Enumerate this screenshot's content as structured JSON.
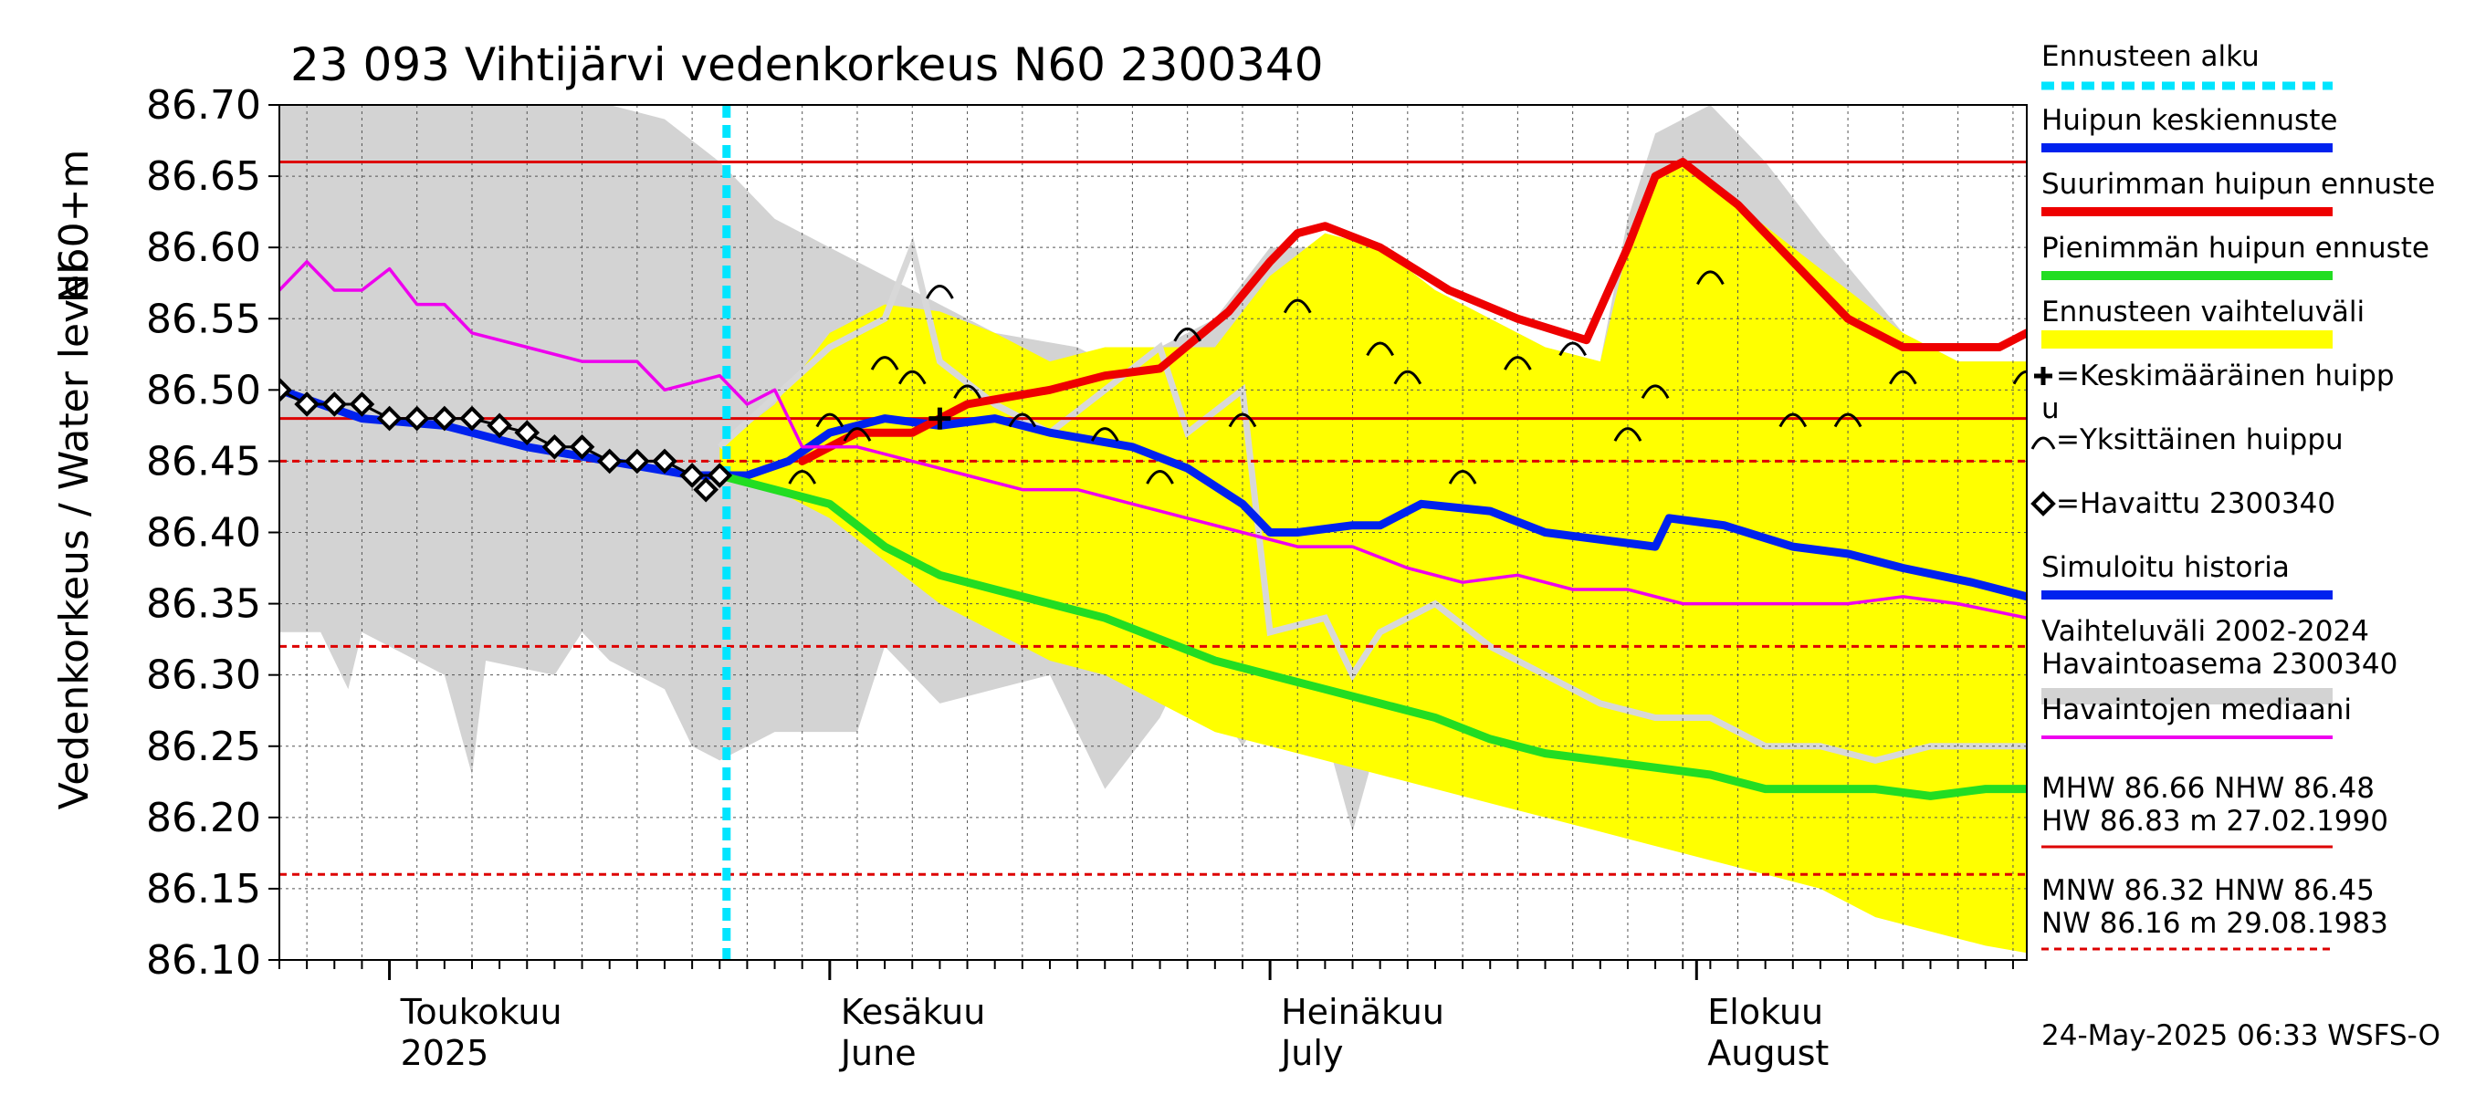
{
  "chart_data": {
    "type": "line",
    "title": "23 093 Vihtijärvi vedenkorkeus N60 2300340",
    "ylabel_1": "Vedenkorkeus / Water level",
    "ylabel_2": "N60+m",
    "ylim": [
      86.1,
      86.7
    ],
    "y_ticks": [
      "86.70",
      "86.65",
      "86.60",
      "86.55",
      "86.50",
      "86.45",
      "86.40",
      "86.35",
      "86.30",
      "86.25",
      "86.20",
      "86.15",
      "86.10"
    ],
    "x_range_days": [
      0,
      127
    ],
    "month_labels": [
      {
        "name": "Toukokuu",
        "sub": "2025",
        "day": 8
      },
      {
        "name": "Kesäkuu",
        "sub": "June",
        "day": 40
      },
      {
        "name": "Heinäkuu",
        "sub": "July",
        "day": 72
      },
      {
        "name": "Elokuu",
        "sub": "August",
        "day": 103
      }
    ],
    "forecast_start_day": 32.5,
    "ref_lines": [
      {
        "value": 86.66,
        "style": "solid"
      },
      {
        "value": 86.48,
        "style": "solid"
      },
      {
        "value": 86.45,
        "style": "dashed"
      },
      {
        "value": 86.32,
        "style": "dashed"
      },
      {
        "value": 86.16,
        "style": "dashed"
      }
    ],
    "series": [
      {
        "name": "Huipun keskiennuste",
        "color": "#0022ee",
        "points": [
          [
            0,
            86.5
          ],
          [
            6,
            86.48
          ],
          [
            12,
            86.475
          ],
          [
            18,
            86.46
          ],
          [
            24,
            86.45
          ],
          [
            30,
            86.44
          ],
          [
            34,
            86.44
          ],
          [
            37,
            86.45
          ],
          [
            40,
            86.47
          ],
          [
            44,
            86.48
          ],
          [
            48,
            86.475
          ],
          [
            52,
            86.48
          ],
          [
            56,
            86.47
          ],
          [
            62,
            86.46
          ],
          [
            66,
            86.445
          ],
          [
            70,
            86.42
          ],
          [
            72,
            86.4
          ],
          [
            74,
            86.4
          ],
          [
            78,
            86.405
          ],
          [
            80,
            86.405
          ],
          [
            83,
            86.42
          ],
          [
            88,
            86.415
          ],
          [
            92,
            86.4
          ],
          [
            96,
            86.395
          ],
          [
            100,
            86.39
          ],
          [
            101,
            86.41
          ],
          [
            105,
            86.405
          ],
          [
            110,
            86.39
          ],
          [
            114,
            86.385
          ],
          [
            118,
            86.375
          ],
          [
            123,
            86.365
          ],
          [
            127,
            86.355
          ]
        ]
      },
      {
        "name": "Suurimman huipun ennuste",
        "color": "#ee0000",
        "points": [
          [
            38,
            86.45
          ],
          [
            42,
            86.47
          ],
          [
            46,
            86.47
          ],
          [
            50,
            86.49
          ],
          [
            56,
            86.5
          ],
          [
            60,
            86.51
          ],
          [
            64,
            86.515
          ],
          [
            69,
            86.555
          ],
          [
            72,
            86.59
          ],
          [
            74,
            86.61
          ],
          [
            76,
            86.615
          ],
          [
            80,
            86.6
          ],
          [
            85,
            86.57
          ],
          [
            90,
            86.55
          ],
          [
            95,
            86.535
          ],
          [
            98,
            86.6
          ],
          [
            100,
            86.65
          ],
          [
            102,
            86.66
          ],
          [
            106,
            86.63
          ],
          [
            110,
            86.59
          ],
          [
            114,
            86.55
          ],
          [
            118,
            86.53
          ],
          [
            122,
            86.53
          ],
          [
            125,
            86.53
          ],
          [
            127,
            86.54
          ]
        ]
      },
      {
        "name": "Pienimmän huipun ennuste",
        "color": "#22dd22",
        "points": [
          [
            32,
            86.44
          ],
          [
            36,
            86.43
          ],
          [
            40,
            86.42
          ],
          [
            44,
            86.39
          ],
          [
            48,
            86.37
          ],
          [
            52,
            86.36
          ],
          [
            56,
            86.35
          ],
          [
            60,
            86.34
          ],
          [
            64,
            86.325
          ],
          [
            68,
            86.31
          ],
          [
            72,
            86.3
          ],
          [
            76,
            86.29
          ],
          [
            80,
            86.28
          ],
          [
            84,
            86.27
          ],
          [
            88,
            86.255
          ],
          [
            92,
            86.245
          ],
          [
            96,
            86.24
          ],
          [
            100,
            86.235
          ],
          [
            104,
            86.23
          ],
          [
            108,
            86.22
          ],
          [
            112,
            86.22
          ],
          [
            116,
            86.22
          ],
          [
            120,
            86.215
          ],
          [
            124,
            86.22
          ],
          [
            127,
            86.22
          ]
        ]
      },
      {
        "name": "Havaintojen mediaani",
        "color": "#ee00ee",
        "points": [
          [
            0,
            86.57
          ],
          [
            2,
            86.59
          ],
          [
            4,
            86.57
          ],
          [
            6,
            86.57
          ],
          [
            8,
            86.585
          ],
          [
            10,
            86.56
          ],
          [
            12,
            86.56
          ],
          [
            14,
            86.54
          ],
          [
            18,
            86.53
          ],
          [
            22,
            86.52
          ],
          [
            26,
            86.52
          ],
          [
            28,
            86.5
          ],
          [
            32,
            86.51
          ],
          [
            34,
            86.49
          ],
          [
            36,
            86.5
          ],
          [
            38,
            86.46
          ],
          [
            42,
            86.46
          ],
          [
            46,
            86.45
          ],
          [
            50,
            86.44
          ],
          [
            54,
            86.43
          ],
          [
            58,
            86.43
          ],
          [
            62,
            86.42
          ],
          [
            66,
            86.41
          ],
          [
            70,
            86.4
          ],
          [
            74,
            86.39
          ],
          [
            78,
            86.39
          ],
          [
            82,
            86.375
          ],
          [
            86,
            86.365
          ],
          [
            90,
            86.37
          ],
          [
            94,
            86.36
          ],
          [
            98,
            86.36
          ],
          [
            102,
            86.35
          ],
          [
            106,
            86.35
          ],
          [
            110,
            86.35
          ],
          [
            114,
            86.35
          ],
          [
            118,
            86.355
          ],
          [
            122,
            86.35
          ],
          [
            127,
            86.34
          ]
        ]
      }
    ],
    "observed": {
      "name": "Havaittu 2300340",
      "points": [
        [
          0,
          86.5
        ],
        [
          2,
          86.49
        ],
        [
          4,
          86.49
        ],
        [
          6,
          86.49
        ],
        [
          8,
          86.48
        ],
        [
          10,
          86.48
        ],
        [
          12,
          86.48
        ],
        [
          14,
          86.48
        ],
        [
          16,
          86.475
        ],
        [
          18,
          86.47
        ],
        [
          20,
          86.46
        ],
        [
          22,
          86.46
        ],
        [
          24,
          86.45
        ],
        [
          26,
          86.45
        ],
        [
          28,
          86.45
        ],
        [
          30,
          86.44
        ],
        [
          32,
          86.44
        ],
        [
          31,
          86.43
        ]
      ]
    },
    "peaks": [
      [
        38,
        86.44
      ],
      [
        40,
        86.48
      ],
      [
        42,
        86.47
      ],
      [
        44,
        86.52
      ],
      [
        46,
        86.51
      ],
      [
        48,
        86.57
      ],
      [
        50,
        86.5
      ],
      [
        54,
        86.48
      ],
      [
        60,
        86.47
      ],
      [
        64,
        86.44
      ],
      [
        66,
        86.54
      ],
      [
        70,
        86.48
      ],
      [
        74,
        86.56
      ],
      [
        80,
        86.53
      ],
      [
        82,
        86.51
      ],
      [
        86,
        86.44
      ],
      [
        90,
        86.52
      ],
      [
        94,
        86.53
      ],
      [
        98,
        86.47
      ],
      [
        100,
        86.5
      ],
      [
        104,
        86.58
      ],
      [
        110,
        86.48
      ],
      [
        114,
        86.48
      ],
      [
        118,
        86.51
      ],
      [
        127,
        86.51
      ]
    ],
    "mean_peak": [
      48,
      86.48
    ],
    "forecast_band": {
      "name": "Ennusteen vaihteluväli",
      "upper": [
        [
          32,
          86.46
        ],
        [
          36,
          86.49
        ],
        [
          40,
          86.54
        ],
        [
          44,
          86.56
        ],
        [
          48,
          86.555
        ],
        [
          52,
          86.54
        ],
        [
          56,
          86.52
        ],
        [
          60,
          86.53
        ],
        [
          64,
          86.53
        ],
        [
          68,
          86.53
        ],
        [
          72,
          86.58
        ],
        [
          76,
          86.61
        ],
        [
          80,
          86.6
        ],
        [
          84,
          86.57
        ],
        [
          88,
          86.55
        ],
        [
          92,
          86.53
        ],
        [
          96,
          86.52
        ],
        [
          98,
          86.6
        ],
        [
          100,
          86.65
        ],
        [
          102,
          86.66
        ],
        [
          106,
          86.63
        ],
        [
          110,
          86.6
        ],
        [
          114,
          86.57
        ],
        [
          118,
          86.54
        ],
        [
          122,
          86.52
        ],
        [
          127,
          86.52
        ]
      ],
      "lower": [
        [
          32,
          86.44
        ],
        [
          36,
          86.43
        ],
        [
          40,
          86.41
        ],
        [
          44,
          86.38
        ],
        [
          48,
          86.35
        ],
        [
          52,
          86.33
        ],
        [
          56,
          86.31
        ],
        [
          60,
          86.3
        ],
        [
          64,
          86.28
        ],
        [
          68,
          86.26
        ],
        [
          72,
          86.25
        ],
        [
          76,
          86.24
        ],
        [
          80,
          86.23
        ],
        [
          84,
          86.22
        ],
        [
          88,
          86.21
        ],
        [
          92,
          86.2
        ],
        [
          96,
          86.19
        ],
        [
          100,
          86.18
        ],
        [
          104,
          86.17
        ],
        [
          108,
          86.16
        ],
        [
          112,
          86.15
        ],
        [
          116,
          86.13
        ],
        [
          120,
          86.12
        ],
        [
          124,
          86.11
        ],
        [
          127,
          86.105
        ]
      ]
    },
    "history_band": {
      "name": "Vaihteluväli 2002-2024 Havaintoasema 2300340",
      "upper": [
        [
          0,
          86.7
        ],
        [
          12,
          86.7
        ],
        [
          24,
          86.7
        ],
        [
          28,
          86.69
        ],
        [
          32,
          86.66
        ],
        [
          36,
          86.62
        ],
        [
          40,
          86.6
        ],
        [
          44,
          86.58
        ],
        [
          48,
          86.56
        ],
        [
          52,
          86.54
        ],
        [
          58,
          86.53
        ],
        [
          60,
          86.52
        ],
        [
          64,
          86.53
        ],
        [
          68,
          86.55
        ],
        [
          72,
          86.6
        ],
        [
          76,
          86.6
        ],
        [
          80,
          86.58
        ],
        [
          84,
          86.57
        ],
        [
          88,
          86.55
        ],
        [
          92,
          86.53
        ],
        [
          96,
          86.52
        ],
        [
          98,
          86.62
        ],
        [
          100,
          86.68
        ],
        [
          104,
          86.7
        ],
        [
          108,
          86.66
        ],
        [
          112,
          86.61
        ],
        [
          118,
          86.54
        ],
        [
          122,
          86.52
        ],
        [
          127,
          86.52
        ]
      ],
      "lower": [
        [
          0,
          86.33
        ],
        [
          3,
          86.33
        ],
        [
          5,
          86.29
        ],
        [
          6,
          86.33
        ],
        [
          12,
          86.3
        ],
        [
          14,
          86.23
        ],
        [
          15,
          86.31
        ],
        [
          20,
          86.3
        ],
        [
          22,
          86.33
        ],
        [
          24,
          86.31
        ],
        [
          28,
          86.29
        ],
        [
          30,
          86.25
        ],
        [
          32,
          86.24
        ],
        [
          36,
          86.26
        ],
        [
          42,
          86.26
        ],
        [
          44,
          86.32
        ],
        [
          48,
          86.28
        ],
        [
          52,
          86.29
        ],
        [
          56,
          86.3
        ],
        [
          60,
          86.22
        ],
        [
          64,
          86.27
        ],
        [
          66,
          86.31
        ],
        [
          70,
          86.25
        ],
        [
          72,
          86.28
        ],
        [
          76,
          86.26
        ],
        [
          78,
          86.19
        ],
        [
          80,
          86.26
        ],
        [
          84,
          86.24
        ],
        [
          88,
          86.22
        ],
        [
          92,
          86.22
        ],
        [
          96,
          86.23
        ],
        [
          100,
          86.21
        ],
        [
          104,
          86.22
        ],
        [
          108,
          86.21
        ],
        [
          112,
          86.19
        ],
        [
          116,
          86.21
        ],
        [
          120,
          86.2
        ],
        [
          124,
          86.19
        ],
        [
          127,
          86.25
        ]
      ]
    },
    "sim_band_top": [
      [
        32,
        86.46
      ],
      [
        40,
        86.53
      ],
      [
        44,
        86.55
      ],
      [
        46,
        86.6
      ],
      [
        48,
        86.52
      ],
      [
        52,
        86.49
      ],
      [
        56,
        86.47
      ],
      [
        60,
        86.5
      ],
      [
        64,
        86.53
      ],
      [
        66,
        86.47
      ],
      [
        70,
        86.5
      ],
      [
        72,
        86.33
      ],
      [
        76,
        86.34
      ],
      [
        78,
        86.3
      ],
      [
        80,
        86.33
      ],
      [
        84,
        86.35
      ],
      [
        88,
        86.32
      ],
      [
        92,
        86.3
      ],
      [
        96,
        86.28
      ],
      [
        100,
        86.27
      ],
      [
        104,
        86.27
      ],
      [
        108,
        86.25
      ],
      [
        112,
        86.25
      ],
      [
        116,
        86.24
      ],
      [
        120,
        86.25
      ],
      [
        124,
        86.25
      ],
      [
        127,
        86.25
      ]
    ],
    "legend": [
      {
        "label": "Ennusteen alku",
        "style": "cyan-dashed"
      },
      {
        "label": "Huipun keskiennuste",
        "style": "blue"
      },
      {
        "label": "Suurimman huipun ennuste",
        "style": "red"
      },
      {
        "label": "Pienimmän huipun ennuste",
        "style": "green"
      },
      {
        "label": "Ennusteen vaihteluväli",
        "style": "yellow"
      },
      {
        "label": "=Keskimääräinen huipp",
        "label2": "u",
        "style": "plus"
      },
      {
        "label": "=Yksittäinen huippu",
        "style": "arc"
      },
      {
        "label": "=Havaittu 2300340",
        "style": "diamond"
      },
      {
        "label": "Simuloitu historia",
        "style": "blue"
      },
      {
        "label": "Vaihteluväli 2002-2024",
        "label2": " Havaintoasema 2300340",
        "style": "gray"
      },
      {
        "label": "Havaintojen mediaani",
        "style": "magenta"
      }
    ],
    "stats": [
      {
        "line1": "MHW  86.66 NHW  86.48",
        "line2": "HW  86.83 m 27.02.1990",
        "style": "red-solid"
      },
      {
        "line1": "MNW  86.32 HNW  86.45",
        "line2": "NW  86.16 m 29.08.1983",
        "style": "red-dashed"
      }
    ],
    "footer": "24-May-2025 06:33 WSFS-O"
  }
}
